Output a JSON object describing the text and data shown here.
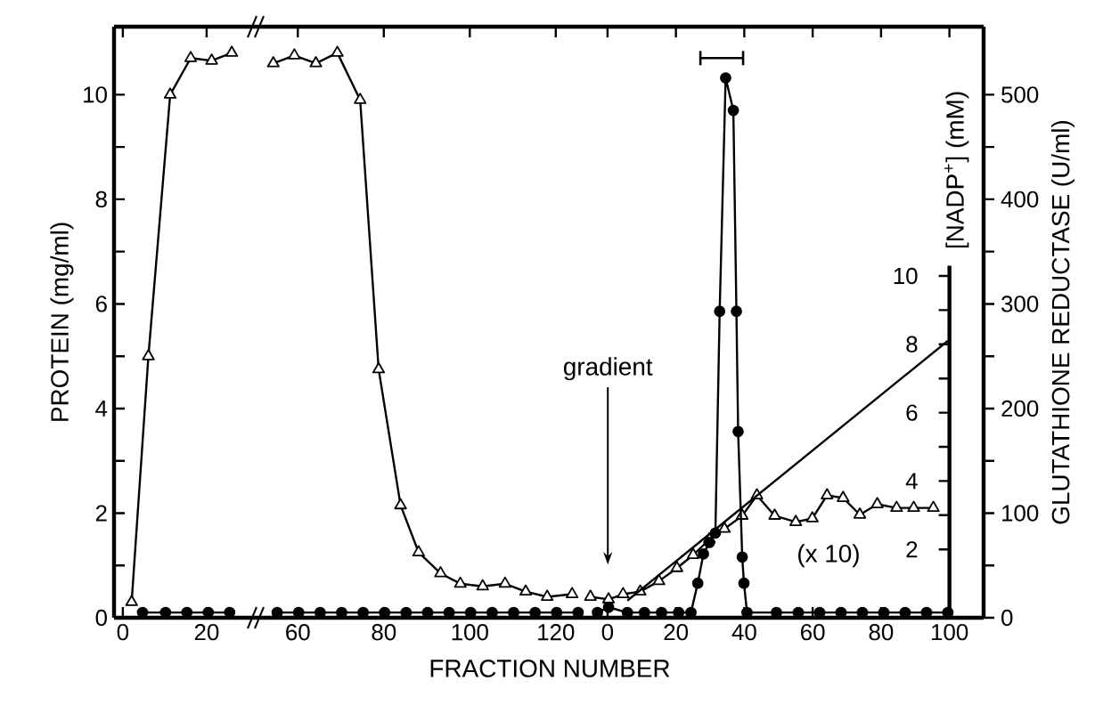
{
  "chart_data": [
    {
      "type": "line",
      "ylabel": "PROTEIN (mg/ml)",
      "xlim": [
        -2.1,
        31.5
      ],
      "xticks": [
        0,
        20
      ],
      "ylim": [
        0,
        11.3
      ],
      "yticks": [
        0,
        {
          "value": 1,
          "label": null
        },
        2,
        {
          "value": 3,
          "label": null
        },
        4,
        {
          "value": 5,
          "label": null
        },
        6,
        {
          "value": 7,
          "label": null
        },
        8,
        {
          "value": 9,
          "label": null
        },
        10
      ],
      "grid": false,
      "series": [
        {
          "color": "#000000",
          "marker": "triangle",
          "x": [
            2.1,
            6.1,
            11.3,
            16.2,
            21.2,
            26.0
          ],
          "values": [
            0.3,
            5.0,
            10.0,
            10.7,
            10.65,
            10.8
          ]
        },
        {
          "color": "#000000",
          "marker": "circle",
          "x": [
            4.7,
            10.2,
            15.3,
            20.4,
            25.5
          ],
          "values": [
            0.1,
            0.1,
            0.1,
            0.1,
            0.1
          ]
        }
      ]
    },
    {
      "type": "line",
      "xlabel": "FRACTION NUMBER",
      "xlim": [
        50,
        127.5
      ],
      "xticks": [
        60,
        80,
        100,
        120
      ],
      "ylim": [
        0,
        11.3
      ],
      "tick_labels": "x",
      "grid": false,
      "series": [
        {
          "color": "#000000",
          "marker": "triangle",
          "x": [
            54.3,
            59.2,
            64.2,
            69.2,
            74.5,
            78.8,
            83.9,
            88.1,
            93.2,
            97.8,
            103,
            108.2,
            113,
            118,
            123.8
          ],
          "values": [
            10.6,
            10.75,
            10.6,
            10.8,
            9.9,
            4.75,
            2.15,
            1.25,
            0.85,
            0.65,
            0.6,
            0.65,
            0.5,
            0.4,
            0.45
          ]
        },
        {
          "color": "#000000",
          "marker": "circle",
          "x": [
            55.2,
            60.2,
            65.2,
            70.2,
            75.2,
            80.2,
            85.2,
            90.2,
            95.2,
            100.2,
            105.2,
            110.2,
            115.2,
            120.2,
            125.2
          ],
          "values": [
            0.1,
            0.1,
            0.1,
            0.1,
            0.1,
            0.1,
            0.1,
            0.1,
            0.1,
            0.1,
            0.1,
            0.1,
            0.1,
            0.1,
            0.1
          ]
        }
      ]
    },
    {
      "type": "line",
      "y2label": "GLUTATHIONE REDUCTASE (U/ml)",
      "y3label": "[NADP$^{+}$] (mM)",
      "xlim": [
        -5.7,
        110
      ],
      "xticks": [
        0,
        20,
        40,
        60,
        80,
        100
      ],
      "ylim": [
        0,
        11.3
      ],
      "y2lim": [
        0,
        565
      ],
      "y2ticks": [
        0,
        {
          "value": 50,
          "label": null
        },
        100,
        {
          "value": 150,
          "label": null
        },
        200,
        {
          "value": 250,
          "label": null
        },
        300,
        {
          "value": 350,
          "label": null
        },
        400,
        {
          "value": 450,
          "label": null
        },
        500
      ],
      "y3lim": [
        0,
        10.3
      ],
      "y3ticks": [
        2,
        4,
        6,
        8,
        10
      ],
      "grid": false,
      "series": [
        {
          "color": "#000000",
          "marker": "triangle",
          "x": [
            -5.0,
            0.3,
            4.55,
            9.55,
            15.05,
            20.3,
            25.05,
            29.8,
            34.2,
            39.4,
            43.7,
            48.9,
            55.05,
            59.9,
            64.2,
            68.9,
            73.8,
            78.9,
            84.55,
            89.55,
            95.3
          ],
          "values": [
            0.4,
            0.35,
            0.45,
            0.5,
            0.7,
            0.95,
            1.2,
            1.5,
            1.7,
            1.95,
            2.34,
            1.95,
            1.83,
            1.9,
            2.34,
            2.29,
            1.97,
            2.17,
            2.1,
            2.1,
            2.1
          ]
        },
        {
          "color": "#000000",
          "marker": "circle",
          "axis": "y2",
          "x": [
            -2.95,
            0.3,
            5.8,
            10.8,
            15.8,
            20.8,
            24.4,
            26.4,
            28.05,
            29.8,
            31.55,
            32.8,
            34.55,
            36.8,
            37.7,
            38.2,
            39.4,
            39.9,
            40.8,
            49.4,
            55.8,
            62.05,
            68.3,
            74.55,
            80.8,
            87.05,
            93.3,
            99.55
          ],
          "values": [
            5,
            10,
            5,
            5,
            5,
            5,
            5,
            33,
            61,
            72,
            81,
            293,
            516,
            485,
            293,
            178,
            58,
            33,
            5,
            5,
            5,
            5,
            5,
            5,
            5,
            5,
            5,
            5
          ]
        },
        {
          "color": "#000000",
          "marker": "none",
          "axis": "y3",
          "x": [
            5.8,
            99.5
          ],
          "values": [
            0.5,
            8.1
          ]
        }
      ],
      "annotations": [
        "gradient",
        "(x 10)"
      ]
    }
  ]
}
